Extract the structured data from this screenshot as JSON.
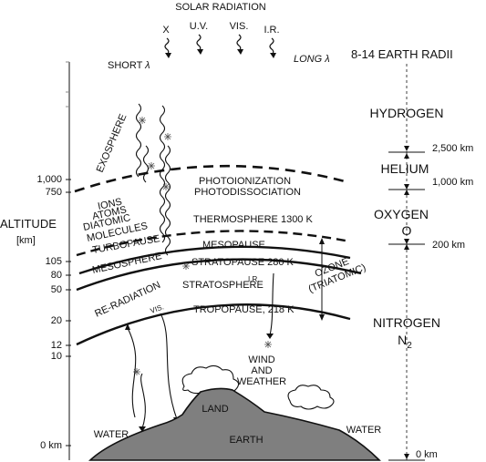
{
  "header": {
    "title": "SOLAR RADIATION",
    "bands": [
      "X",
      "U.V.",
      "VIS.",
      "I.R."
    ],
    "short_wave": "SHORT",
    "long_wave": "LONG",
    "lambda": "λ",
    "earth_radii": "8-14 EARTH RADII"
  },
  "axis": {
    "title": "ALTITUDE",
    "unit": "[km]",
    "ticks": [
      "1,000",
      "750",
      "105",
      "80",
      "50",
      "20",
      "12",
      "10",
      "0 km"
    ]
  },
  "layers": {
    "exosphere": "EXOSPHERE",
    "photoionization": "PHOTOIONIZATION",
    "photodissociation": "PHOTODISSOCIATION",
    "ions": "IONS",
    "atoms": "ATOMS",
    "diatomic": "DIATOMIC",
    "molecules": "MOLECULES",
    "thermosphere": "THERMOSPHERE 1300 K",
    "turbopause": "TURBOPAUSE",
    "mesopause": "MESOPAUSE",
    "mesosphere": "MESOSPHERE",
    "stratopause": "STRATOPAUSE 280 K",
    "stratosphere": "STRATOSPHERE",
    "tropopause": "TROPOPAUSE, 218 K",
    "re_radiation": "RE-RADIATION",
    "vis_small": "VIS.",
    "ir_small": "I.R.",
    "ozone": "OZONE",
    "triatomic": "(TRIATOMIC)"
  },
  "surface": {
    "wind": "WIND",
    "and": "AND",
    "weather": "WEATHER",
    "land": "LAND",
    "earth": "EARTH",
    "water_left": "WATER",
    "water_right": "WATER"
  },
  "composition": {
    "hydrogen": "HYDROGEN",
    "alt_2500": "2,500 km",
    "helium": "HELIUM",
    "alt_1000": "1,000 km",
    "oxygen": "OXYGEN",
    "oxygen_symbol": "O",
    "alt_200": "200 km",
    "nitrogen": "NITROGEN",
    "nitrogen_symbol": "N",
    "nitrogen_sub": "2",
    "alt_0": "0 km"
  },
  "colors": {
    "ink": "#111111",
    "earth_fill": "#7f7f7f",
    "background": "#ffffff"
  }
}
